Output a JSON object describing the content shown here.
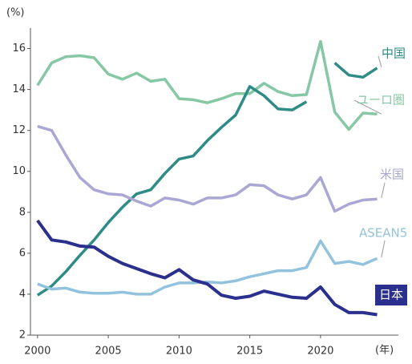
{
  "chart_data": {
    "type": "line",
    "y_unit": "(%)",
    "x_unit": "(年)",
    "x": [
      2000,
      2001,
      2002,
      2003,
      2004,
      2005,
      2006,
      2007,
      2008,
      2009,
      2010,
      2011,
      2012,
      2013,
      2014,
      2015,
      2016,
      2017,
      2018,
      2019,
      2020,
      2021,
      2022,
      2023,
      2024
    ],
    "xlim": [
      1999.5,
      2025.5
    ],
    "xticks": [
      2000,
      2005,
      2010,
      2015,
      2020
    ],
    "ylim": [
      2,
      17
    ],
    "yticks": [
      2,
      4,
      6,
      8,
      10,
      12,
      14,
      16
    ],
    "series": [
      {
        "name": "ユーロ圏",
        "color": "#86c7a4",
        "values": [
          14.2,
          15.3,
          15.6,
          15.65,
          15.55,
          14.75,
          14.5,
          14.8,
          14.4,
          14.5,
          13.55,
          13.5,
          13.35,
          13.55,
          13.8,
          13.8,
          14.3,
          13.9,
          13.7,
          13.75,
          16.35,
          12.9,
          12.05,
          12.85,
          12.8
        ]
      },
      {
        "name": "中国",
        "color": "#2e8b86",
        "values": [
          3.95,
          4.4,
          5.1,
          5.9,
          6.65,
          7.5,
          8.25,
          8.9,
          9.1,
          9.9,
          10.6,
          10.75,
          11.5,
          12.15,
          12.75,
          14.15,
          13.7,
          13.05,
          13.0,
          13.4,
          null,
          15.3,
          14.7,
          14.6,
          15.05
        ]
      },
      {
        "name": "米国",
        "color": "#aaa7d4",
        "values": [
          12.2,
          12.0,
          10.8,
          9.7,
          9.1,
          8.9,
          8.85,
          8.55,
          8.3,
          8.7,
          8.6,
          8.4,
          8.7,
          8.7,
          8.85,
          9.35,
          9.3,
          8.85,
          8.65,
          8.85,
          9.7,
          8.05,
          8.4,
          8.6,
          8.65
        ]
      },
      {
        "name": "ASEAN5",
        "color": "#92c3de",
        "values": [
          4.5,
          4.25,
          4.3,
          4.1,
          4.05,
          4.05,
          4.1,
          4.0,
          4.0,
          4.35,
          4.55,
          4.55,
          4.6,
          4.55,
          4.65,
          4.85,
          5.0,
          5.15,
          5.15,
          5.3,
          6.6,
          5.5,
          5.6,
          5.45,
          5.75
        ]
      },
      {
        "name": "日本",
        "color": "#2b2f8e",
        "values": [
          7.6,
          6.65,
          6.55,
          6.35,
          6.3,
          5.85,
          5.5,
          5.25,
          5.0,
          4.8,
          5.2,
          4.7,
          4.5,
          3.95,
          3.8,
          3.9,
          4.15,
          4.0,
          3.85,
          3.8,
          4.35,
          3.5,
          3.1,
          3.1,
          3.0
        ]
      }
    ]
  }
}
